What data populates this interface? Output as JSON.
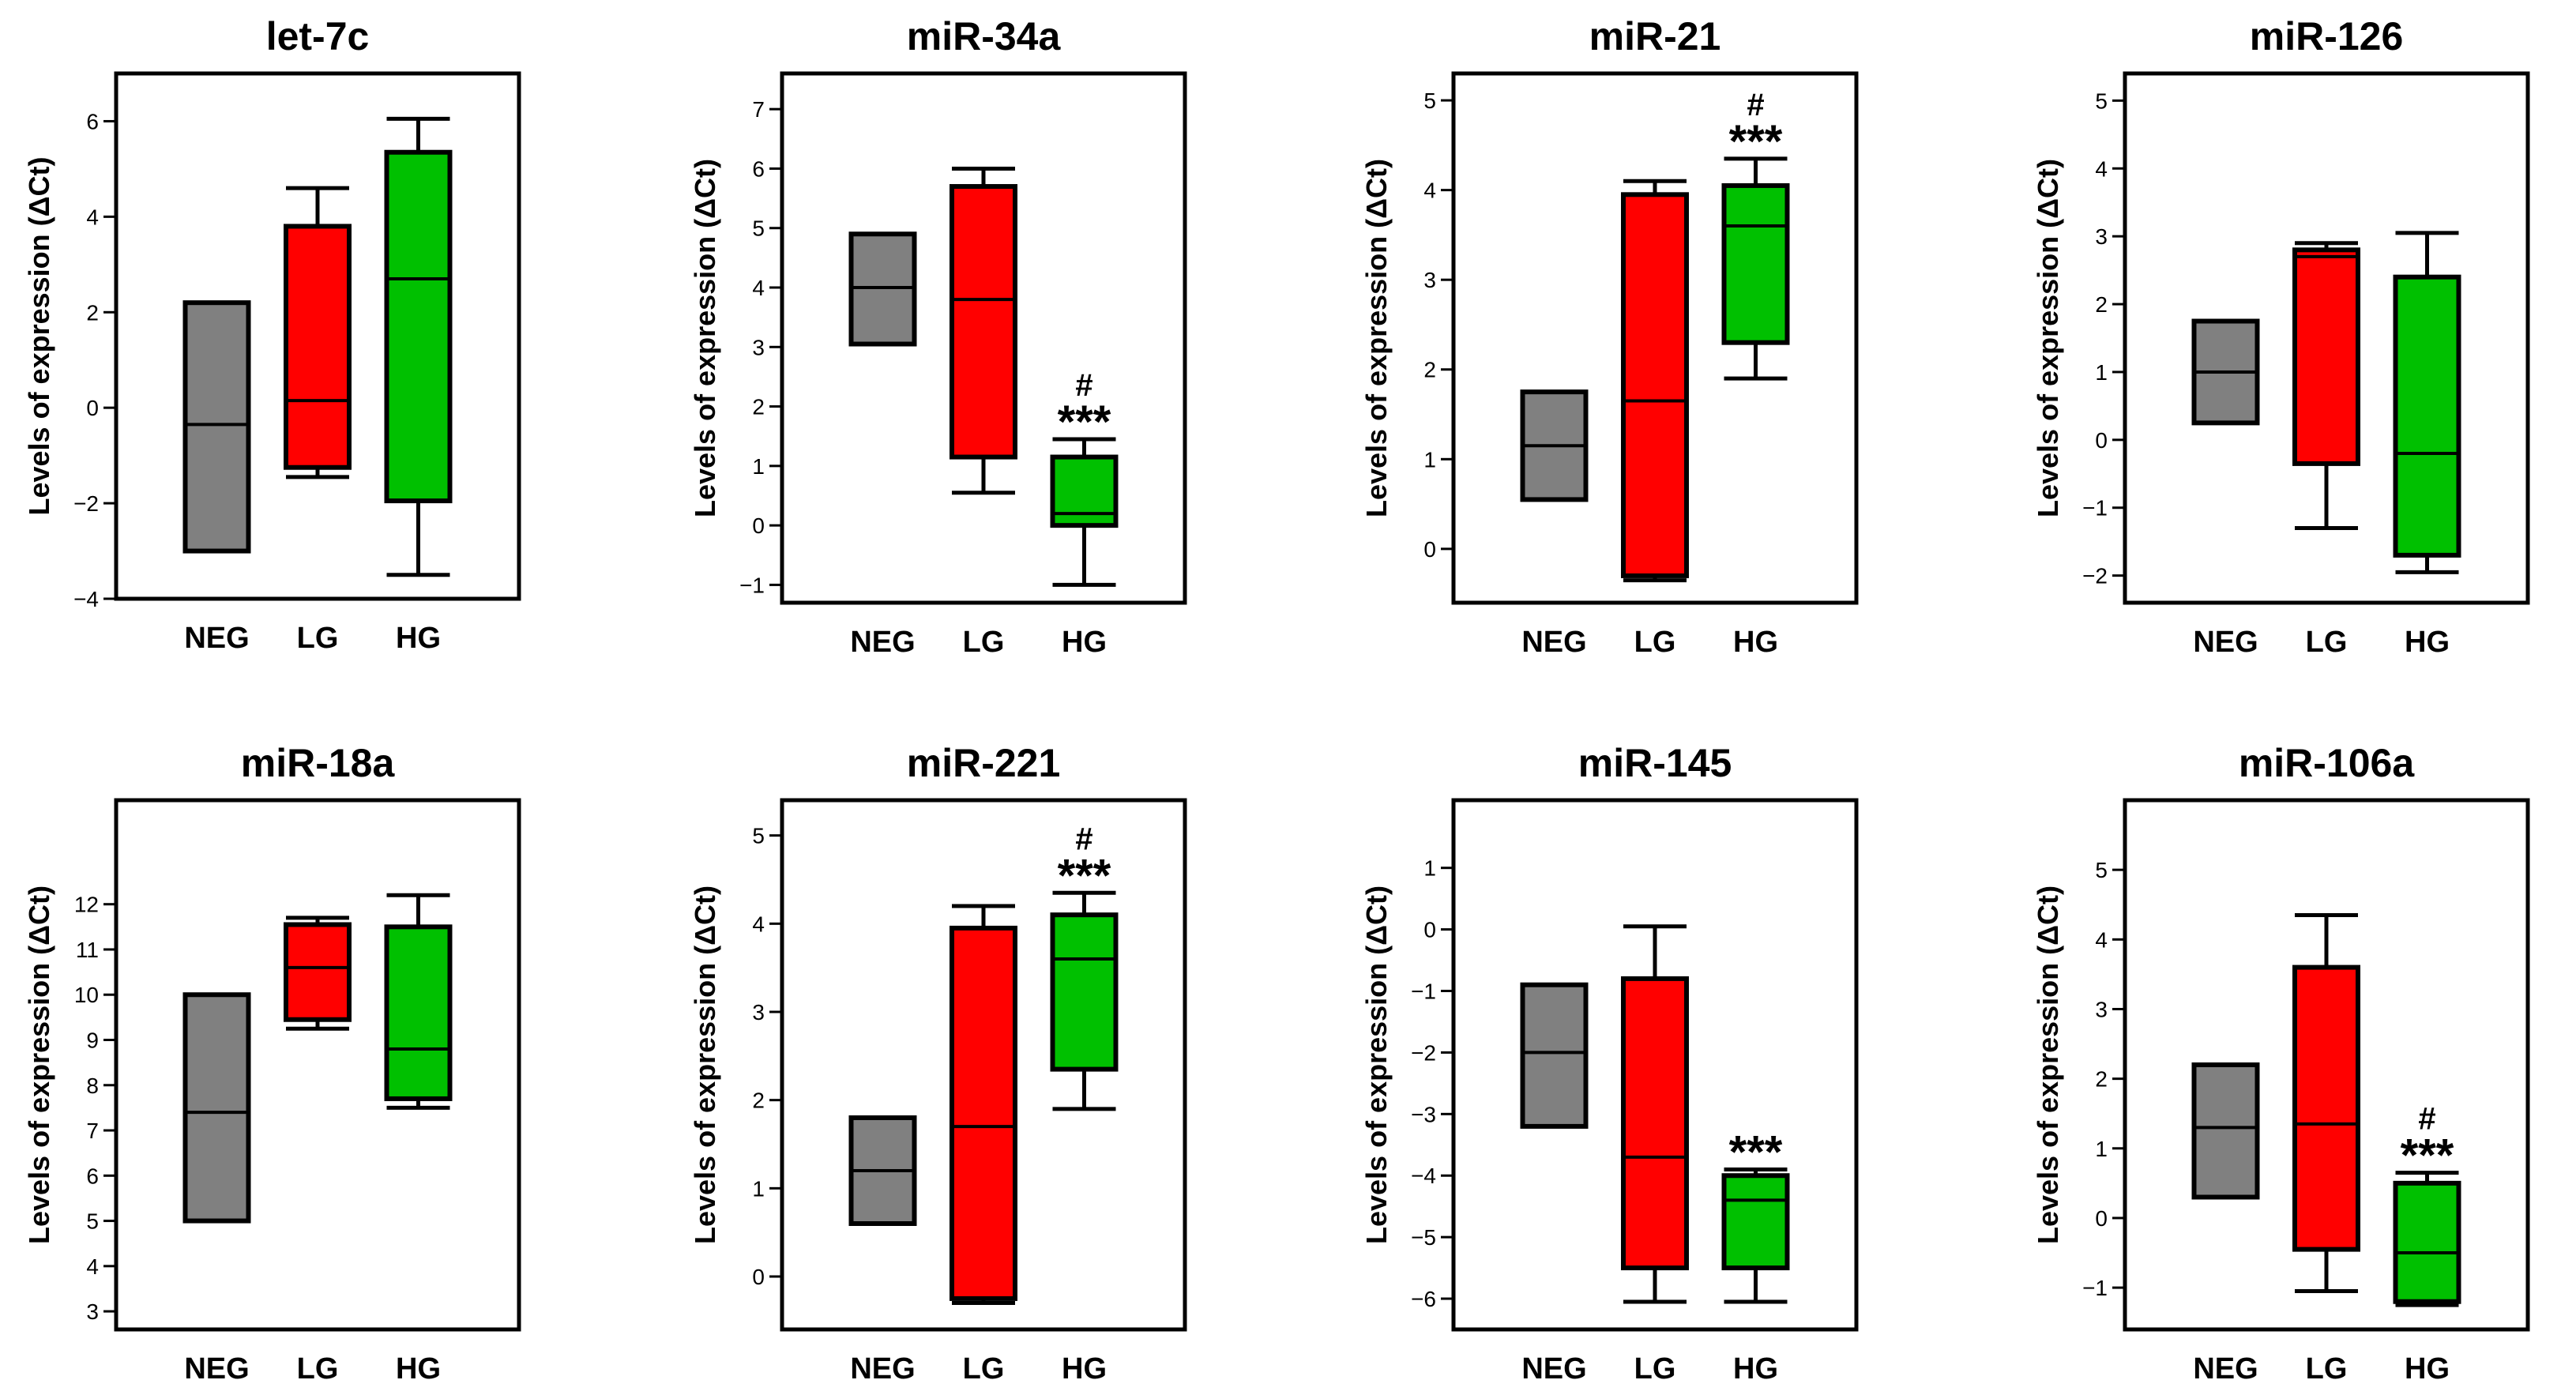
{
  "colors": {
    "NEG": "#808080",
    "LG": "#ff0000",
    "HG": "#00c000",
    "line": "#000000"
  },
  "chart_data": [
    {
      "type": "box",
      "title": "let-7c",
      "ylabel": "Levels of expression (ΔCt)",
      "ylim": [
        -4,
        7
      ],
      "ticks": [
        -4,
        -2,
        0,
        2,
        4,
        6
      ],
      "categories": [
        "NEG",
        "LG",
        "HG"
      ],
      "boxes": [
        {
          "group": "NEG",
          "min": -3.0,
          "q1": -3.0,
          "median": -0.35,
          "q3": 2.2,
          "max": 2.2
        },
        {
          "group": "LG",
          "min": -1.45,
          "q1": -1.25,
          "median": 0.15,
          "q3": 3.8,
          "max": 4.6
        },
        {
          "group": "HG",
          "min": -3.5,
          "q1": -1.95,
          "median": 2.7,
          "q3": 5.35,
          "max": 6.05
        }
      ],
      "annotations": []
    },
    {
      "type": "box",
      "title": "miR-34a",
      "ylabel": "Levels of expression (ΔCt)",
      "ylim": [
        -1.3,
        7.6
      ],
      "ticks": [
        -1,
        0,
        1,
        2,
        3,
        4,
        5,
        6,
        7
      ],
      "categories": [
        "NEG",
        "LG",
        "HG"
      ],
      "boxes": [
        {
          "group": "NEG",
          "min": 3.05,
          "q1": 3.05,
          "median": 4.0,
          "q3": 4.9,
          "max": 4.9
        },
        {
          "group": "LG",
          "min": 0.55,
          "q1": 1.15,
          "median": 3.8,
          "q3": 5.7,
          "max": 6.0
        },
        {
          "group": "HG",
          "min": -1.0,
          "q1": 0.0,
          "median": 0.2,
          "q3": 1.15,
          "max": 1.45
        }
      ],
      "annotations": [
        {
          "group": "HG",
          "stars": "***",
          "hash": "#"
        }
      ]
    },
    {
      "type": "box",
      "title": "miR-21",
      "ylabel": "Levels of expression (ΔCt)",
      "ylim": [
        -0.6,
        5.3
      ],
      "ticks": [
        0,
        1,
        2,
        3,
        4,
        5
      ],
      "categories": [
        "NEG",
        "LG",
        "HG"
      ],
      "boxes": [
        {
          "group": "NEG",
          "min": 0.55,
          "q1": 0.55,
          "median": 1.15,
          "q3": 1.75,
          "max": 1.75
        },
        {
          "group": "LG",
          "min": -0.35,
          "q1": -0.3,
          "median": 1.65,
          "q3": 3.95,
          "max": 4.1
        },
        {
          "group": "HG",
          "min": 1.9,
          "q1": 2.3,
          "median": 3.6,
          "q3": 4.05,
          "max": 4.35
        }
      ],
      "annotations": [
        {
          "group": "HG",
          "stars": "***",
          "hash": "#"
        }
      ]
    },
    {
      "type": "box",
      "title": "miR-126",
      "ylabel": "Levels of expression (ΔCt)",
      "ylim": [
        -2.4,
        5.4
      ],
      "ticks": [
        -2,
        -1,
        0,
        1,
        2,
        3,
        4,
        5
      ],
      "categories": [
        "NEG",
        "LG",
        "HG"
      ],
      "boxes": [
        {
          "group": "NEG",
          "min": 0.25,
          "q1": 0.25,
          "median": 1.0,
          "q3": 1.75,
          "max": 1.75
        },
        {
          "group": "LG",
          "min": -1.3,
          "q1": -0.35,
          "median": 2.7,
          "q3": 2.8,
          "max": 2.9
        },
        {
          "group": "HG",
          "min": -1.95,
          "q1": -1.7,
          "median": -0.2,
          "q3": 2.4,
          "max": 3.05
        }
      ],
      "annotations": []
    },
    {
      "type": "box",
      "title": "miR-18a",
      "ylabel": "Levels of expression (ΔCt)",
      "ylim": [
        2.6,
        14.3
      ],
      "ticks": [
        3,
        4,
        5,
        6,
        7,
        8,
        9,
        10,
        11,
        12
      ],
      "categories": [
        "NEG",
        "LG",
        "HG"
      ],
      "boxes": [
        {
          "group": "NEG",
          "min": 5.0,
          "q1": 5.0,
          "median": 7.4,
          "q3": 10.0,
          "max": 10.0
        },
        {
          "group": "LG",
          "min": 9.25,
          "q1": 9.45,
          "median": 10.6,
          "q3": 11.55,
          "max": 11.7
        },
        {
          "group": "HG",
          "min": 7.5,
          "q1": 7.7,
          "median": 8.8,
          "q3": 11.5,
          "max": 12.2
        }
      ],
      "annotations": []
    },
    {
      "type": "box",
      "title": "miR-221",
      "ylabel": "Levels of expression (ΔCt)",
      "ylim": [
        -0.6,
        5.4
      ],
      "ticks": [
        0,
        1,
        2,
        3,
        4,
        5
      ],
      "categories": [
        "NEG",
        "LG",
        "HG"
      ],
      "boxes": [
        {
          "group": "NEG",
          "min": 0.6,
          "q1": 0.6,
          "median": 1.2,
          "q3": 1.8,
          "max": 1.8
        },
        {
          "group": "LG",
          "min": -0.3,
          "q1": -0.25,
          "median": 1.7,
          "q3": 3.95,
          "max": 4.2
        },
        {
          "group": "HG",
          "min": 1.9,
          "q1": 2.35,
          "median": 3.6,
          "q3": 4.1,
          "max": 4.35
        }
      ],
      "annotations": [
        {
          "group": "HG",
          "stars": "***",
          "hash": "#"
        }
      ]
    },
    {
      "type": "box",
      "title": "miR-145",
      "ylabel": "Levels of expression (ΔCt)",
      "ylim": [
        -6.5,
        2.1
      ],
      "ticks": [
        -6,
        -5,
        -4,
        -3,
        -2,
        -1,
        0,
        1
      ],
      "categories": [
        "NEG",
        "LG",
        "HG"
      ],
      "boxes": [
        {
          "group": "NEG",
          "min": -3.2,
          "q1": -3.2,
          "median": -2.0,
          "q3": -0.9,
          "max": -0.9
        },
        {
          "group": "LG",
          "min": -6.05,
          "q1": -5.5,
          "median": -3.7,
          "q3": -0.8,
          "max": 0.05
        },
        {
          "group": "HG",
          "min": -6.05,
          "q1": -5.5,
          "median": -4.4,
          "q3": -4.0,
          "max": -3.9
        }
      ],
      "annotations": [
        {
          "group": "HG",
          "stars": "***",
          "hash": ""
        }
      ]
    },
    {
      "type": "box",
      "title": "miR-106a",
      "ylabel": "Levels of expression (ΔCt)",
      "ylim": [
        -1.6,
        6.0
      ],
      "ticks": [
        -1,
        0,
        1,
        2,
        3,
        4,
        5
      ],
      "categories": [
        "NEG",
        "LG",
        "HG"
      ],
      "boxes": [
        {
          "group": "NEG",
          "min": 0.3,
          "q1": 0.3,
          "median": 1.3,
          "q3": 2.2,
          "max": 2.2
        },
        {
          "group": "LG",
          "min": -1.05,
          "q1": -0.45,
          "median": 1.35,
          "q3": 3.6,
          "max": 4.35
        },
        {
          "group": "HG",
          "min": -1.25,
          "q1": -1.2,
          "median": -0.5,
          "q3": 0.5,
          "max": 0.65
        }
      ],
      "annotations": [
        {
          "group": "HG",
          "stars": "***",
          "hash": "#"
        }
      ]
    }
  ]
}
